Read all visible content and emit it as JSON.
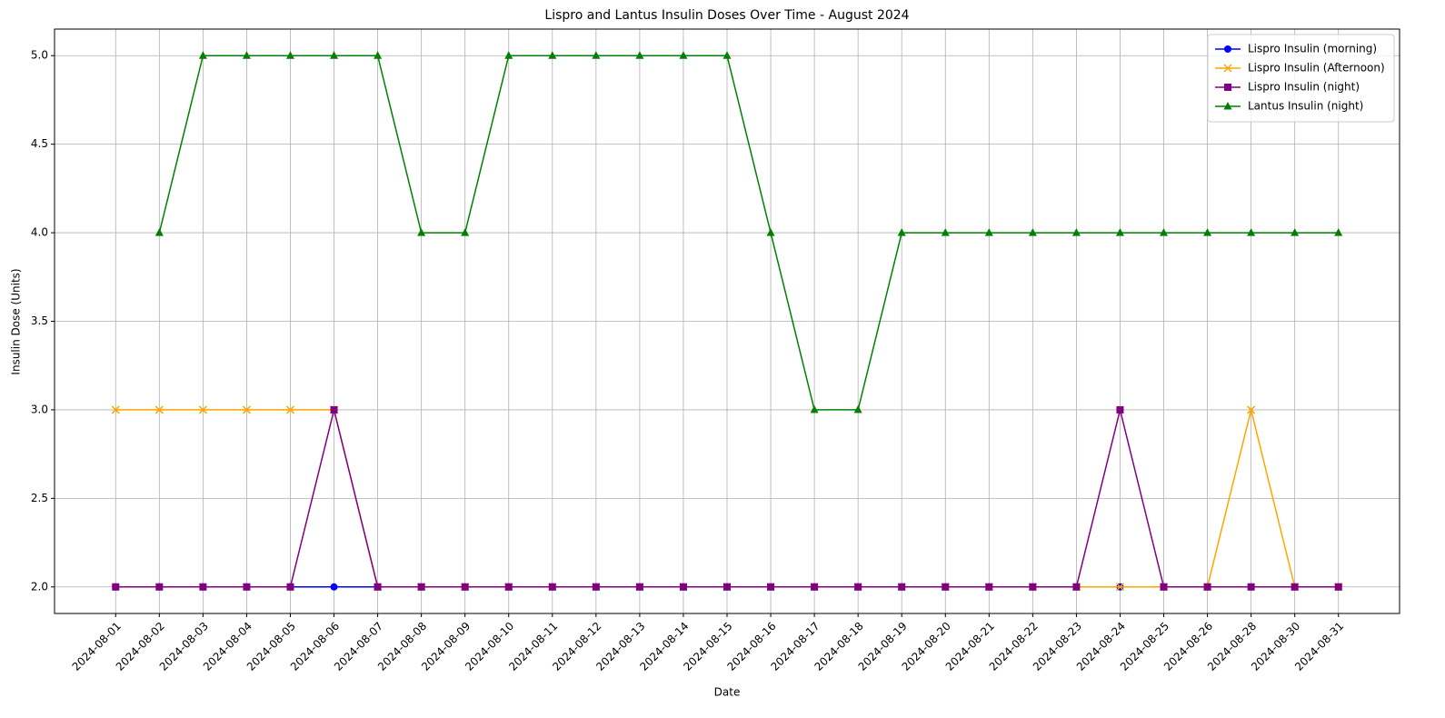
{
  "chart_data": {
    "type": "line",
    "title": "Lispro and Lantus Insulin Doses Over Time - August 2024",
    "x_label": "Date",
    "y_label": "Insulin Dose (Units)",
    "categories": [
      "2024-08-01",
      "2024-08-02",
      "2024-08-03",
      "2024-08-04",
      "2024-08-05",
      "2024-08-06",
      "2024-08-07",
      "2024-08-08",
      "2024-08-09",
      "2024-08-10",
      "2024-08-11",
      "2024-08-12",
      "2024-08-13",
      "2024-08-14",
      "2024-08-15",
      "2024-08-16",
      "2024-08-17",
      "2024-08-18",
      "2024-08-19",
      "2024-08-20",
      "2024-08-21",
      "2024-08-22",
      "2024-08-23",
      "2024-08-24",
      "2024-08-25",
      "2024-08-26",
      "2024-08-28",
      "2024-08-30",
      "2024-08-31"
    ],
    "series": [
      {
        "name": "Lispro Insulin (morning)",
        "color": "blue",
        "marker": "circle",
        "values": [
          2,
          2,
          2,
          2,
          2,
          2,
          2,
          2,
          2,
          2,
          2,
          2,
          2,
          2,
          2,
          2,
          2,
          2,
          2,
          2,
          2,
          2,
          2,
          2,
          2,
          2,
          2,
          2,
          2
        ]
      },
      {
        "name": "Lispro Insulin (Afternoon)",
        "color": "orange",
        "marker": "x",
        "values": [
          3,
          3,
          3,
          3,
          3,
          3,
          2,
          2,
          2,
          2,
          2,
          2,
          2,
          2,
          2,
          2,
          2,
          2,
          2,
          2,
          2,
          2,
          2,
          2,
          2,
          2,
          3,
          2,
          2
        ]
      },
      {
        "name": "Lispro Insulin (night)",
        "color": "purple",
        "marker": "square",
        "values": [
          2,
          2,
          2,
          2,
          2,
          3,
          2,
          2,
          2,
          2,
          2,
          2,
          2,
          2,
          2,
          2,
          2,
          2,
          2,
          2,
          2,
          2,
          2,
          3,
          2,
          2,
          2,
          2,
          2
        ]
      },
      {
        "name": "Lantus Insulin (night)",
        "color": "green",
        "marker": "triangle",
        "values": [
          null,
          4,
          5,
          5,
          5,
          5,
          5,
          4,
          4,
          5,
          5,
          5,
          5,
          5,
          5,
          4,
          3,
          3,
          4,
          4,
          4,
          4,
          4,
          4,
          4,
          4,
          4,
          4,
          4
        ]
      }
    ],
    "ylim": [
      1.85,
      5.15
    ],
    "yticks": [
      {
        "value": 2,
        "label": "2.0"
      },
      {
        "value": 2.5,
        "label": "2.5"
      },
      {
        "value": 3,
        "label": "3.0"
      },
      {
        "value": 3.5,
        "label": "3.5"
      },
      {
        "value": 4,
        "label": "4.0"
      },
      {
        "value": 4.5,
        "label": "4.5"
      },
      {
        "value": 5,
        "label": "5.0"
      }
    ],
    "grid": true,
    "legend": "upper right"
  }
}
